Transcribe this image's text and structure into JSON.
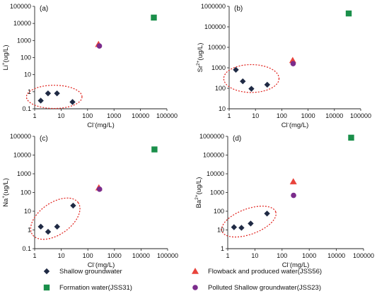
{
  "colors": {
    "shallow": "#1f2a44",
    "formation": "#1a8f4a",
    "flowback": "#e8433c",
    "polluted": "#7b2c8c",
    "ellipse": "#e0201b"
  },
  "legend": [
    {
      "key": "shallow",
      "label": "Shallow groundwater",
      "marker": "diamond"
    },
    {
      "key": "flowback",
      "label": "Flowback and produced water(JSS56)",
      "marker": "triangle"
    },
    {
      "key": "formation",
      "label": "Formation water(JSS31)",
      "marker": "square"
    },
    {
      "key": "polluted",
      "label": "Polluted Shallow groundwater(JSS23)",
      "marker": "circle"
    }
  ],
  "chart_data": [
    {
      "type": "scatter",
      "panel": "(a)",
      "ylabel": {
        "base": "Li",
        "sup": "+",
        "unit": "(ug/L)"
      },
      "xlabel": {
        "base": "Cl",
        "sup": "-",
        "unit": "(mg/L)"
      },
      "xscale": "log",
      "yscale": "log",
      "xlim": [
        1,
        100000
      ],
      "ylim": [
        0.1,
        100000
      ],
      "xticks": [
        "1",
        "10",
        "100",
        "1000",
        "10000",
        "100000"
      ],
      "yticks": [
        "0.1",
        "1",
        "10",
        "100",
        "1000",
        "10000",
        "100000"
      ],
      "series": [
        {
          "key": "shallow",
          "points": [
            [
              1.7,
              0.3
            ],
            [
              3.2,
              0.8
            ],
            [
              7,
              0.8
            ],
            [
              27,
              0.25
            ]
          ]
        },
        {
          "key": "formation",
          "points": [
            [
              32000,
              22000
            ]
          ]
        },
        {
          "key": "flowback",
          "points": [
            [
              260,
              600
            ]
          ]
        },
        {
          "key": "polluted",
          "points": [
            [
              280,
              480
            ]
          ]
        }
      ],
      "ellipse": {
        "center": [
          5.5,
          0.5
        ],
        "rx_decades": 1.05,
        "ry_decades": 0.68
      }
    },
    {
      "type": "scatter",
      "panel": "(b)",
      "ylabel": {
        "base": "Sr",
        "sup": "2+",
        "unit": "(ug/L)"
      },
      "xlabel": {
        "base": "Cl",
        "sup": "-",
        "unit": "(mg/L)"
      },
      "xscale": "log",
      "yscale": "log",
      "xlim": [
        1,
        100000
      ],
      "ylim": [
        10,
        1000000
      ],
      "xticks": [
        "1",
        "10",
        "100",
        "1000",
        "10000",
        "100000"
      ],
      "yticks": [
        "10",
        "100",
        "1000",
        "10000",
        "100000",
        "1000000"
      ],
      "series": [
        {
          "key": "shallow",
          "points": [
            [
              1.8,
              800
            ],
            [
              3.3,
              220
            ],
            [
              7,
              95
            ],
            [
              28,
              150
            ]
          ]
        },
        {
          "key": "formation",
          "points": [
            [
              35000,
              450000
            ]
          ]
        },
        {
          "key": "flowback",
          "points": [
            [
              260,
              2300
            ]
          ]
        },
        {
          "key": "polluted",
          "points": [
            [
              270,
              1600
            ]
          ]
        }
      ],
      "ellipse": {
        "center": [
          7,
          300
        ],
        "rx_decades": 1.05,
        "ry_decades": 0.68
      }
    },
    {
      "type": "scatter",
      "panel": "(c)",
      "ylabel": {
        "base": "Na",
        "sup": "+",
        "unit": "(ug/L)"
      },
      "xlabel": {
        "base": "Cl",
        "sup": "-",
        "unit": "(mg/L)"
      },
      "xscale": "log",
      "yscale": "log",
      "xlim": [
        1,
        100000
      ],
      "ylim": [
        0.1,
        100000
      ],
      "xticks": [
        "1",
        "10",
        "100",
        "1000",
        "10000",
        "100000"
      ],
      "yticks": [
        "0.1",
        "1",
        "10",
        "100",
        "1000",
        "10000",
        "100000"
      ],
      "series": [
        {
          "key": "shallow",
          "points": [
            [
              1.7,
              1.5
            ],
            [
              3.2,
              0.8
            ],
            [
              7,
              1.5
            ],
            [
              28,
              20
            ]
          ]
        },
        {
          "key": "formation",
          "points": [
            [
              32000,
              20000
            ]
          ]
        },
        {
          "key": "flowback",
          "points": [
            [
              260,
              180
            ]
          ]
        },
        {
          "key": "polluted",
          "points": [
            [
              275,
              150
            ]
          ]
        }
      ],
      "ellipse": {
        "center": [
          6,
          4
        ],
        "rx_decades": 1.05,
        "ry_decades": 0.85,
        "rotate_deg": -35
      }
    },
    {
      "type": "scatter",
      "panel": "(d)",
      "ylabel": {
        "base": "Ba",
        "sup": "2+",
        "unit": "(ug/L)"
      },
      "xlabel": {
        "base": "Cl",
        "sup": "-",
        "unit": "(mg/L)"
      },
      "xscale": "log",
      "yscale": "log",
      "xlim": [
        1,
        100000
      ],
      "ylim": [
        1,
        1000000
      ],
      "xticks": [
        "1",
        "10",
        "100",
        "1000",
        "10000",
        "100000"
      ],
      "yticks": [
        "1",
        "10",
        "100",
        "1000",
        "10000",
        "100000",
        "1000000"
      ],
      "series": [
        {
          "key": "shallow",
          "points": [
            [
              1.7,
              14
            ],
            [
              3.2,
              13
            ],
            [
              7,
              22
            ],
            [
              28,
              75
            ]
          ]
        },
        {
          "key": "formation",
          "points": [
            [
              35000,
              850000
            ]
          ]
        },
        {
          "key": "flowback",
          "points": [
            [
              260,
              3800
            ]
          ]
        },
        {
          "key": "polluted",
          "points": [
            [
              265,
              700
            ]
          ]
        }
      ],
      "ellipse": {
        "center": [
          6,
          28
        ],
        "rx_decades": 1.05,
        "ry_decades": 0.68,
        "rotate_deg": -20
      }
    }
  ]
}
